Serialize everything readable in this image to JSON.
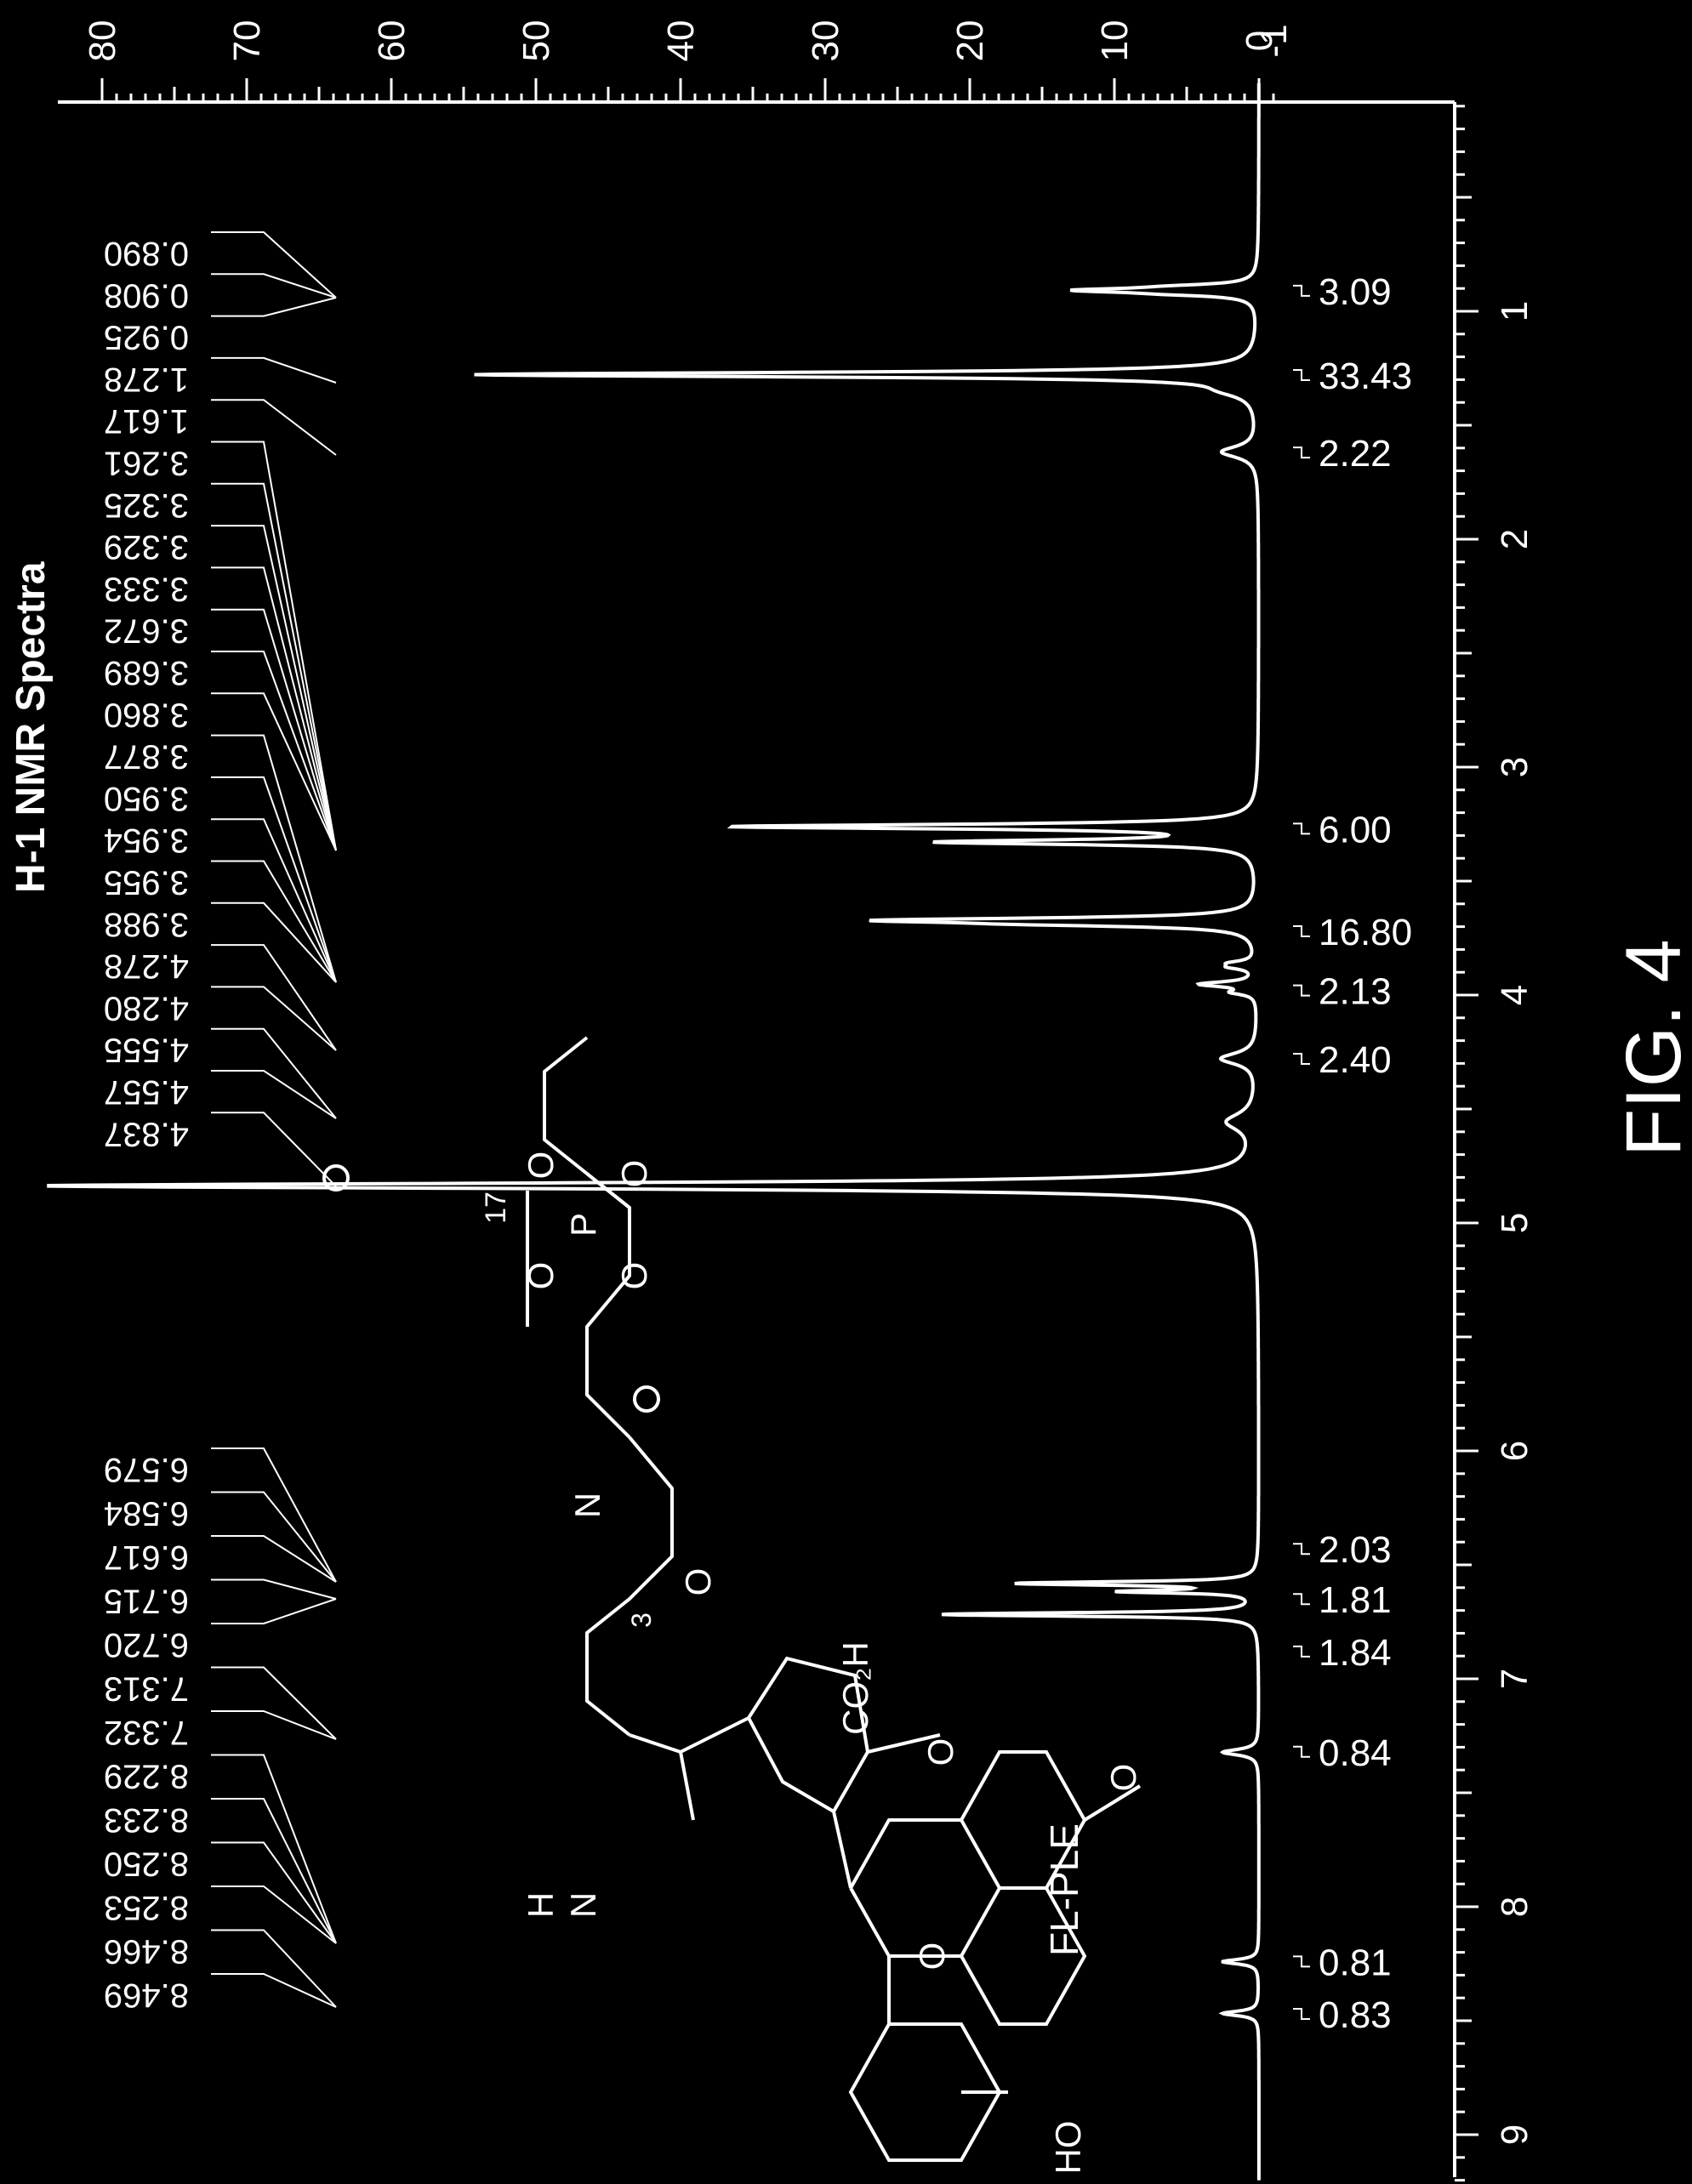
{
  "figure": {
    "title": "H-1 NMR Spectra",
    "caption": "FIG. 4",
    "compound_label": "FL-PLE",
    "colors": {
      "background": "#000000",
      "foreground": "#ffffff"
    }
  },
  "chart_data": {
    "type": "line",
    "orientation": "rotated 90° clockwise (ppm axis runs top-to-bottom)",
    "xlabel": "",
    "ylabel": "",
    "x_ticks": [
      "1",
      "2",
      "3",
      "4",
      "5",
      "6",
      "7",
      "8",
      "9"
    ],
    "y_ticks": [
      "80",
      "70",
      "60",
      "50",
      "40",
      "30",
      "20",
      "10",
      "0",
      "-1"
    ],
    "xlim": [
      0.0,
      9.2
    ],
    "ylim": [
      -1.5,
      80
    ],
    "peaks": [
      {
        "ppm": 0.908,
        "intensity": 11.5,
        "width": 0.012
      },
      {
        "ppm": 0.89,
        "intensity": 3,
        "width": 0.01
      },
      {
        "ppm": 0.925,
        "intensity": 3,
        "width": 0.01
      },
      {
        "ppm": 1.278,
        "intensity": 54,
        "width": 0.012
      },
      {
        "ppm": 1.35,
        "intensity": 1.5,
        "width": 0.03
      },
      {
        "ppm": 1.617,
        "intensity": 2.5,
        "width": 0.03
      },
      {
        "ppm": 3.261,
        "intensity": 36,
        "width": 0.012
      },
      {
        "ppm": 3.329,
        "intensity": 21.5,
        "width": 0.012
      },
      {
        "ppm": 3.672,
        "intensity": 23.5,
        "width": 0.012
      },
      {
        "ppm": 3.689,
        "intensity": 10,
        "width": 0.012
      },
      {
        "ppm": 3.86,
        "intensity": 1.5,
        "width": 0.012
      },
      {
        "ppm": 3.877,
        "intensity": 1.5,
        "width": 0.012
      },
      {
        "ppm": 3.95,
        "intensity": 2,
        "width": 0.012
      },
      {
        "ppm": 3.955,
        "intensity": 2,
        "width": 0.012
      },
      {
        "ppm": 3.988,
        "intensity": 1.5,
        "width": 0.012
      },
      {
        "ppm": 4.279,
        "intensity": 2.5,
        "width": 0.03
      },
      {
        "ppm": 4.556,
        "intensity": 2,
        "width": 0.045
      },
      {
        "ppm": 4.837,
        "intensity": 84,
        "width": 0.015
      },
      {
        "ppm": 6.579,
        "intensity": 9,
        "width": 0.008
      },
      {
        "ppm": 6.584,
        "intensity": 9,
        "width": 0.008
      },
      {
        "ppm": 6.617,
        "intensity": 9,
        "width": 0.008
      },
      {
        "ppm": 6.715,
        "intensity": 12,
        "width": 0.008
      },
      {
        "ppm": 6.72,
        "intensity": 12,
        "width": 0.008
      },
      {
        "ppm": 7.322,
        "intensity": 2.5,
        "width": 0.015
      },
      {
        "ppm": 8.241,
        "intensity": 2.5,
        "width": 0.012
      },
      {
        "ppm": 8.468,
        "intensity": 2.5,
        "width": 0.012
      }
    ],
    "peak_labels_top": [
      "0.890",
      "0.908",
      "0.925",
      "1.278",
      "1.617",
      "3.261",
      "3.325",
      "3.329",
      "3.333",
      "3.672",
      "3.689",
      "3.860",
      "3.877",
      "3.950",
      "3.954",
      "3.955",
      "3.988",
      "4.278",
      "4.280",
      "4.555",
      "4.557",
      "4.837"
    ],
    "peak_labels_bottom": [
      "6.579",
      "6.584",
      "6.617",
      "6.715",
      "6.720",
      "7.313",
      "7.332",
      "8.229",
      "8.233",
      "8.250",
      "8.253",
      "8.466",
      "8.469"
    ],
    "integrals": [
      {
        "ppm": 0.91,
        "value": "3.09"
      },
      {
        "ppm": 1.28,
        "value": "33.43"
      },
      {
        "ppm": 1.62,
        "value": "2.22"
      },
      {
        "ppm": 3.27,
        "value": "6.00"
      },
      {
        "ppm": 3.72,
        "value": "16.80"
      },
      {
        "ppm": 3.98,
        "value": "2.13"
      },
      {
        "ppm": 4.28,
        "value": "2.40"
      },
      {
        "ppm": 6.43,
        "value": "2.03"
      },
      {
        "ppm": 6.65,
        "value": "1.81"
      },
      {
        "ppm": 6.88,
        "value": "1.84"
      },
      {
        "ppm": 7.32,
        "value": "0.84"
      },
      {
        "ppm": 8.24,
        "value": "0.81"
      },
      {
        "ppm": 8.47,
        "value": "0.83"
      }
    ],
    "structure_labels": {
      "n17": "17",
      "n3": "3",
      "O": "O",
      "P": "P",
      "N": "N",
      "H": "H",
      "CO2H": "CO₂H",
      "OH": "HO",
      "plus": "⊕",
      "minus": "⊖"
    }
  }
}
